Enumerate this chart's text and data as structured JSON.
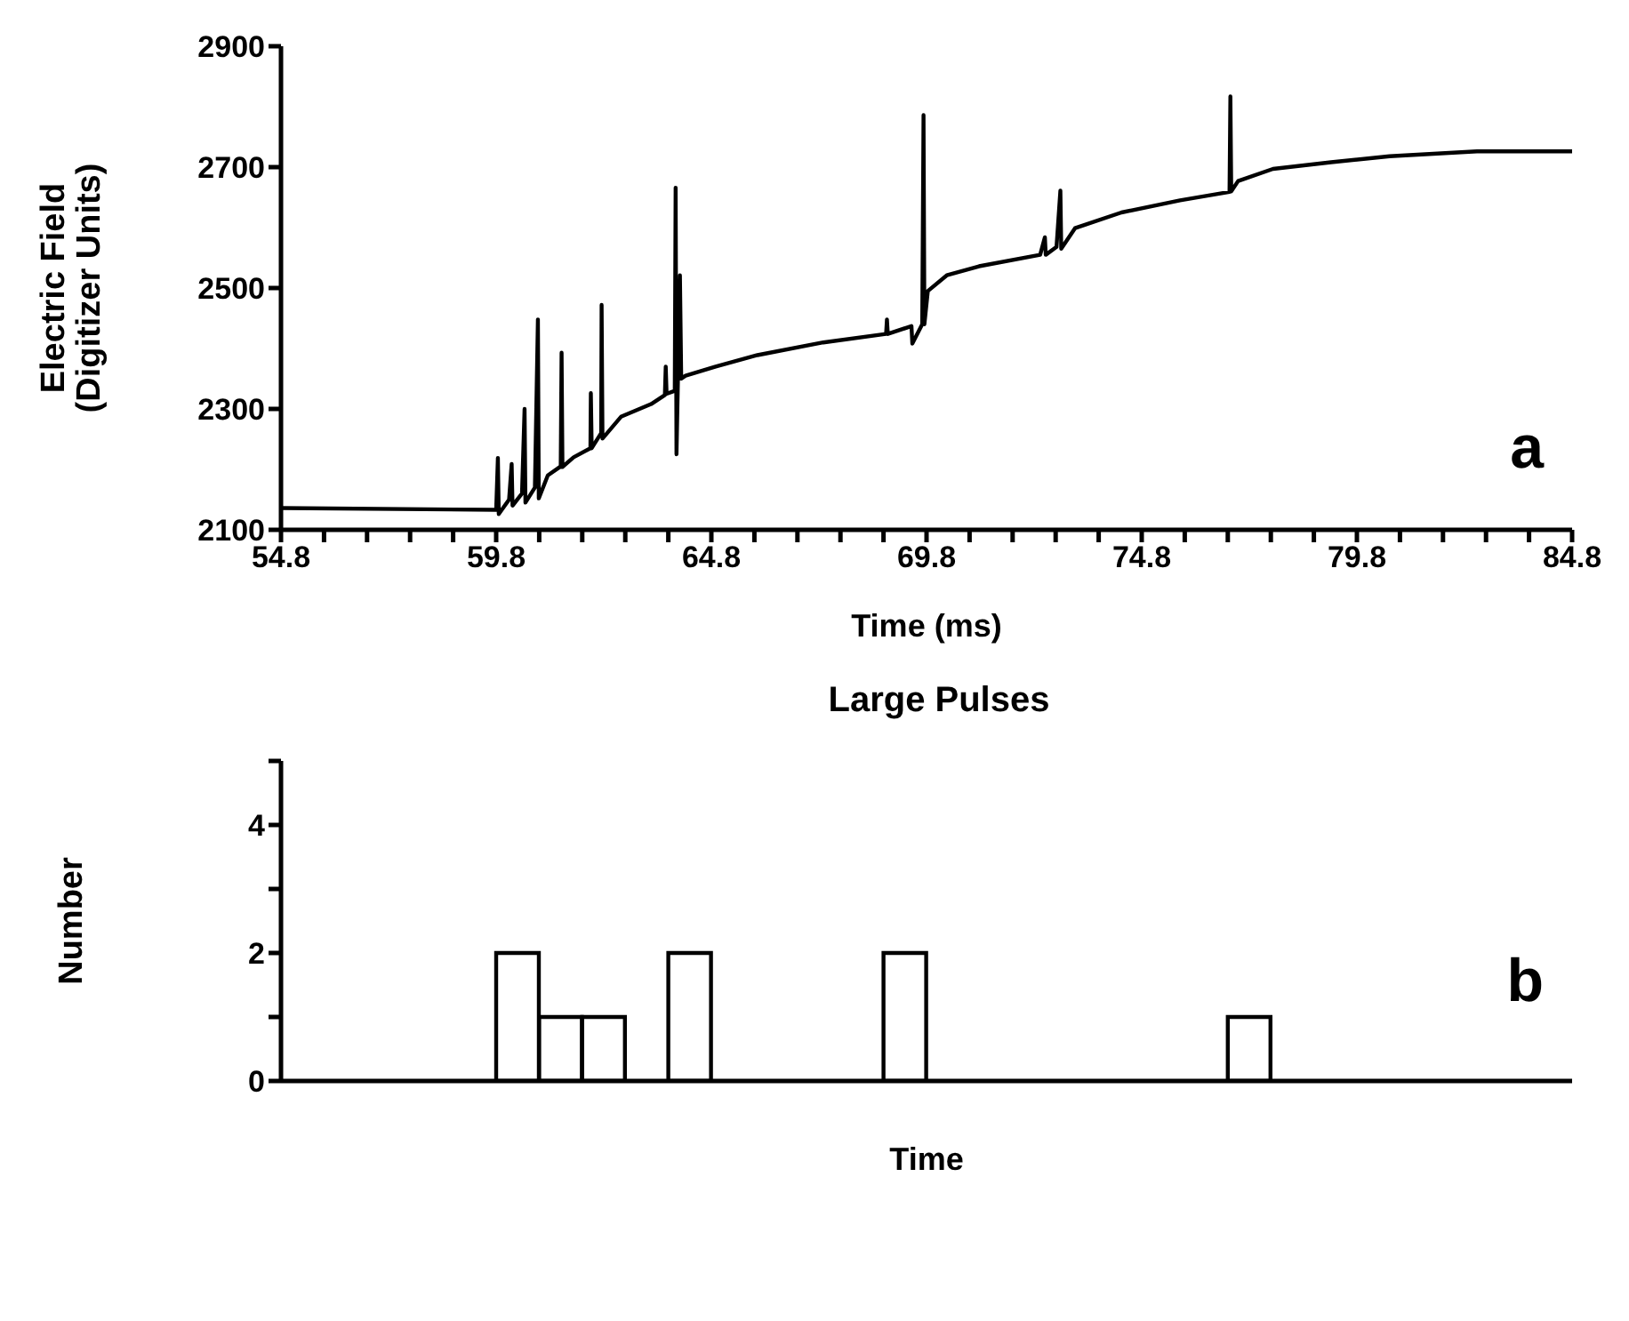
{
  "chart_data": [
    {
      "type": "line",
      "xlabel": "Time (ms)",
      "ylabel": "Electric Field\n(Digitizer Units)",
      "annotations": [
        "a"
      ],
      "x": [
        54.8,
        59.8,
        59.84,
        59.86,
        60.1,
        60.16,
        60.18,
        60.4,
        60.46,
        60.48,
        60.7,
        60.77,
        60.79,
        61.0,
        61.3,
        61.32,
        61.34,
        61.6,
        61.99,
        62.0,
        62.02,
        62.24,
        62.25,
        62.27,
        62.7,
        63.4,
        63.72,
        63.74,
        63.76,
        63.95,
        63.97,
        63.99,
        64.07,
        64.1,
        64.2,
        64.9,
        65.87,
        67.4,
        68.86,
        68.88,
        68.9,
        69.45,
        69.47,
        69.7,
        69.73,
        69.75,
        69.83,
        70.27,
        71.02,
        72.44,
        72.55,
        72.57,
        72.82,
        72.91,
        72.93,
        73.25,
        74.33,
        75.69,
        76.84,
        76.86,
        76.88,
        77.04,
        77.85,
        79.2,
        80.56,
        82.59,
        84.8
      ],
      "series": [
        {
          "color": "#000000",
          "values": [
            2136,
            2133,
            2219,
            2126,
            2150,
            2209,
            2140,
            2160,
            2300,
            2145,
            2170,
            2448,
            2152,
            2190,
            2205,
            2393,
            2204,
            2220,
            2235,
            2326,
            2235,
            2260,
            2472,
            2251,
            2287,
            2308,
            2323,
            2370,
            2325,
            2330,
            2666,
            2225,
            2521,
            2350,
            2355,
            2370,
            2389,
            2410,
            2424,
            2448,
            2424,
            2437,
            2408,
            2440,
            2786,
            2440,
            2495,
            2521,
            2536,
            2555,
            2584,
            2555,
            2568,
            2661,
            2565,
            2599,
            2625,
            2645,
            2659,
            2817,
            2660,
            2677,
            2697,
            2708,
            2718,
            2726,
            2726
          ]
        }
      ],
      "xlim": [
        54.8,
        84.8
      ],
      "xticks": [
        54.8,
        {
          "value": 55.8,
          "label": null
        },
        {
          "value": 56.8,
          "label": null
        },
        {
          "value": 57.8,
          "label": null
        },
        {
          "value": 58.8,
          "label": null
        },
        59.8,
        {
          "value": 60.8,
          "label": null
        },
        {
          "value": 61.8,
          "label": null
        },
        {
          "value": 62.8,
          "label": null
        },
        {
          "value": 63.8,
          "label": null
        },
        64.8,
        {
          "value": 65.8,
          "label": null
        },
        {
          "value": 66.8,
          "label": null
        },
        {
          "value": 67.8,
          "label": null
        },
        {
          "value": 68.8,
          "label": null
        },
        69.8,
        {
          "value": 70.8,
          "label": null
        },
        {
          "value": 71.8,
          "label": null
        },
        {
          "value": 72.8,
          "label": null
        },
        {
          "value": 73.8,
          "label": null
        },
        74.8,
        {
          "value": 75.8,
          "label": null
        },
        {
          "value": 76.8,
          "label": null
        },
        {
          "value": 77.8,
          "label": null
        },
        {
          "value": 78.8,
          "label": null
        },
        79.8,
        {
          "value": 80.8,
          "label": null
        },
        {
          "value": 81.8,
          "label": null
        },
        {
          "value": 82.8,
          "label": null
        },
        {
          "value": 83.8,
          "label": null
        },
        84.8
      ],
      "ylim": [
        2100,
        2900
      ],
      "yticks": [
        2100,
        2300,
        2500,
        2700,
        2900
      ]
    },
    {
      "type": "bar",
      "title": "Large Pulses",
      "xlabel": "Time",
      "ylabel": "Number",
      "annotations": [
        "b"
      ],
      "categories": [
        null,
        null,
        null,
        null,
        null,
        null,
        null,
        null,
        null,
        null,
        null,
        null,
        null,
        null,
        null,
        null,
        null,
        null,
        null,
        null,
        null,
        null,
        null,
        null,
        null,
        null,
        null,
        null,
        null,
        null
      ],
      "series": [
        {
          "color": "#000000",
          "values": [
            0,
            0,
            0,
            0,
            0,
            2,
            1,
            1,
            0,
            2,
            0,
            0,
            0,
            0,
            2,
            0,
            0,
            0,
            0,
            0,
            0,
            0,
            1,
            0,
            0,
            0,
            0,
            0,
            0,
            0
          ]
        }
      ],
      "ylim": [
        0,
        5
      ],
      "yticks": [
        0,
        {
          "value": 1,
          "label": null
        },
        2,
        {
          "value": 3,
          "label": null
        },
        4,
        {
          "value": 5,
          "label": null
        }
      ],
      "tick_labels": "y"
    }
  ]
}
